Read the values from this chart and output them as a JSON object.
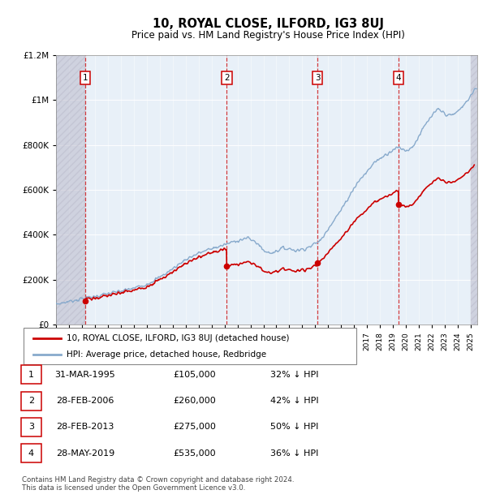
{
  "title": "10, ROYAL CLOSE, ILFORD, IG3 8UJ",
  "subtitle": "Price paid vs. HM Land Registry's House Price Index (HPI)",
  "footer": "Contains HM Land Registry data © Crown copyright and database right 2024.\nThis data is licensed under the Open Government Licence v3.0.",
  "legend_line1": "10, ROYAL CLOSE, ILFORD, IG3 8UJ (detached house)",
  "legend_line2": "HPI: Average price, detached house, Redbridge",
  "sales": [
    {
      "num": 1,
      "date": "31-MAR-1995",
      "price": 105000,
      "pct": "32% ↓ HPI",
      "year": 1995.25
    },
    {
      "num": 2,
      "date": "28-FEB-2006",
      "price": 260000,
      "pct": "42% ↓ HPI",
      "year": 2006.17
    },
    {
      "num": 3,
      "date": "28-FEB-2013",
      "price": 275000,
      "pct": "50% ↓ HPI",
      "year": 2013.17
    },
    {
      "num": 4,
      "date": "28-MAY-2019",
      "price": 535000,
      "pct": "36% ↓ HPI",
      "year": 2019.42
    }
  ],
  "xmin": 1993.0,
  "xmax": 2025.5,
  "ymin": 0,
  "ymax": 1200000,
  "hatch_end": 1995.25,
  "hatch_start_right": 2025.0,
  "sale_color": "#cc0000",
  "hpi_color": "#88aacc",
  "background_color": "#e8f0f8",
  "hatch_color": "#bbbbbb"
}
